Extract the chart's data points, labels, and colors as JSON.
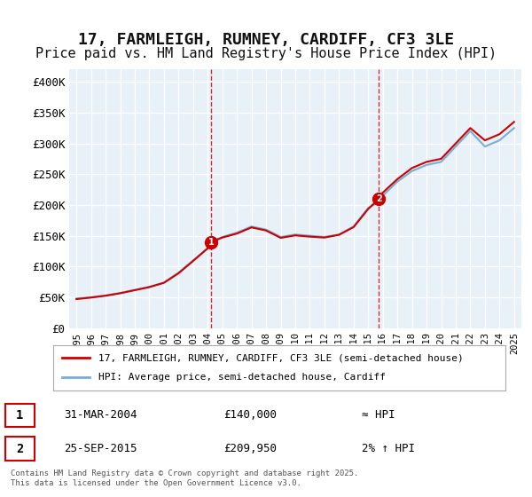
{
  "title": "17, FARMLEIGH, RUMNEY, CARDIFF, CF3 3LE",
  "subtitle": "Price paid vs. HM Land Registry's House Price Index (HPI)",
  "title_fontsize": 13,
  "subtitle_fontsize": 11,
  "background_color": "#ffffff",
  "plot_bg_color": "#e8f0f8",
  "grid_color": "#ffffff",
  "ylim": [
    0,
    420000
  ],
  "yticks": [
    0,
    50000,
    100000,
    150000,
    200000,
    250000,
    300000,
    350000,
    400000
  ],
  "ytick_labels": [
    "£0",
    "£50K",
    "£100K",
    "£150K",
    "£200K",
    "£250K",
    "£300K",
    "£350K",
    "£400K"
  ],
  "sale1_x": 2004.25,
  "sale1_y": 140000,
  "sale1_label": "1",
  "sale2_x": 2015.73,
  "sale2_y": 209950,
  "sale2_label": "2",
  "vline1_x": 2004.25,
  "vline2_x": 2015.73,
  "vline_color": "#cc0000",
  "vline_style": "--",
  "line_color_hpi": "#7aaed6",
  "line_color_price": "#cc0000",
  "legend_label_price": "17, FARMLEIGH, RUMNEY, CARDIFF, CF3 3LE (semi-detached house)",
  "legend_label_hpi": "HPI: Average price, semi-detached house, Cardiff",
  "annotation1_date": "31-MAR-2004",
  "annotation1_price": "£140,000",
  "annotation1_hpi": "≈ HPI",
  "annotation2_date": "25-SEP-2015",
  "annotation2_price": "£209,950",
  "annotation2_hpi": "2% ↑ HPI",
  "footer": "Contains HM Land Registry data © Crown copyright and database right 2025.\nThis data is licensed under the Open Government Licence v3.0.",
  "hpi_years": [
    1995,
    1996,
    1997,
    1998,
    1999,
    2000,
    2001,
    2002,
    2003,
    2004,
    2004.25,
    2005,
    2006,
    2007,
    2008,
    2009,
    2010,
    2011,
    2012,
    2013,
    2014,
    2015,
    2015.73,
    2016,
    2017,
    2018,
    2019,
    2020,
    2021,
    2022,
    2023,
    2024,
    2025
  ],
  "hpi_values": [
    48000,
    50000,
    53000,
    57000,
    62000,
    67000,
    74000,
    90000,
    110000,
    130000,
    140000,
    148000,
    155000,
    165000,
    160000,
    148000,
    152000,
    150000,
    148000,
    152000,
    165000,
    195000,
    205000,
    215000,
    238000,
    255000,
    265000,
    270000,
    295000,
    320000,
    295000,
    305000,
    325000
  ],
  "price_years": [
    1995,
    1996,
    1997,
    1998,
    1999,
    2000,
    2001,
    2002,
    2003,
    2004,
    2004.25,
    2005,
    2006,
    2007,
    2008,
    2009,
    2010,
    2011,
    2012,
    2013,
    2014,
    2015,
    2015.73,
    2016,
    2017,
    2018,
    2019,
    2020,
    2021,
    2022,
    2023,
    2024,
    2025
  ],
  "price_values": [
    47000,
    49500,
    52500,
    56500,
    61500,
    66500,
    73500,
    89000,
    109000,
    129500,
    140000,
    147000,
    153500,
    163500,
    158500,
    146500,
    150500,
    148500,
    147000,
    151500,
    164000,
    193500,
    209950,
    220000,
    242000,
    260000,
    270000,
    275000,
    300000,
    325000,
    305000,
    315000,
    335000
  ],
  "xtick_years": [
    1995,
    1996,
    1997,
    1998,
    1999,
    2000,
    2001,
    2002,
    2003,
    2004,
    2005,
    2006,
    2007,
    2008,
    2009,
    2010,
    2011,
    2012,
    2013,
    2014,
    2015,
    2016,
    2017,
    2018,
    2019,
    2020,
    2021,
    2022,
    2023,
    2024,
    2025
  ]
}
